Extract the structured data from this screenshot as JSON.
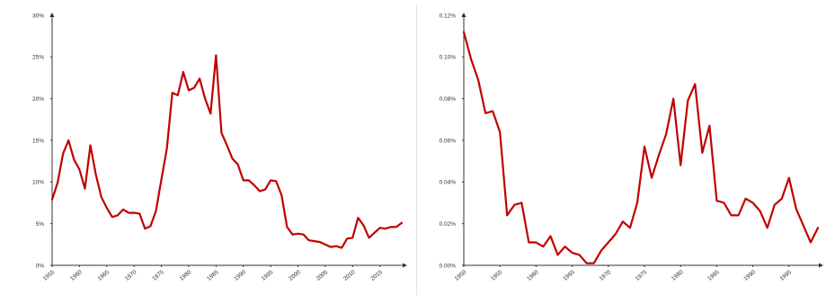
{
  "chart_data": [
    {
      "type": "line",
      "x": [
        1955,
        1956,
        1957,
        1958,
        1959,
        1960,
        1961,
        1962,
        1963,
        1964,
        1965,
        1966,
        1967,
        1968,
        1969,
        1970,
        1971,
        1972,
        1973,
        1974,
        1975,
        1976,
        1977,
        1978,
        1979,
        1980,
        1981,
        1982,
        1983,
        1984,
        1985,
        1986,
        1987,
        1988,
        1989,
        1990,
        1991,
        1992,
        1993,
        1994,
        1995,
        1996,
        1997,
        1998,
        1999,
        2000,
        2001,
        2002,
        2003,
        2004,
        2005,
        2006,
        2007,
        2008,
        2009,
        2010,
        2011,
        2012,
        2013,
        2014,
        2015,
        2016,
        2017,
        2018,
        2019
      ],
      "series": [
        {
          "values": [
            7.9,
            9.9,
            13.4,
            15.0,
            12.7,
            11.5,
            9.2,
            14.4,
            10.9,
            8.2,
            6.9,
            5.8,
            6.0,
            6.7,
            6.3,
            6.3,
            6.2,
            4.4,
            4.7,
            6.5,
            10.3,
            14.0,
            20.7,
            20.4,
            23.2,
            21.0,
            21.3,
            22.4,
            20.0,
            18.2,
            25.2,
            15.9,
            14.4,
            12.8,
            12.1,
            10.2,
            10.2,
            9.6,
            8.9,
            9.1,
            10.2,
            10.1,
            8.4,
            4.6,
            3.7,
            3.8,
            3.7,
            3.0,
            2.9,
            2.8,
            2.5,
            2.2,
            2.3,
            2.1,
            3.2,
            3.3,
            5.7,
            4.8,
            3.3,
            3.9,
            4.5,
            4.4,
            4.6,
            4.6,
            5.1
          ]
        }
      ],
      "ylim": [
        0,
        30
      ],
      "yticks": [
        0,
        5,
        10,
        15,
        20,
        25,
        30
      ],
      "ytick_labels": [
        "0%",
        "5%",
        "10%",
        "15%",
        "20%",
        "25%",
        "30%"
      ],
      "xticks": [
        1955,
        1960,
        1965,
        1970,
        1975,
        1980,
        1985,
        1990,
        1995,
        2000,
        2005,
        2010,
        2015
      ],
      "xtick_labels": [
        "1955",
        "1960",
        "1965",
        "1970",
        "1975",
        "1980",
        "1985",
        "1990",
        "1995",
        "2000",
        "2005",
        "2010",
        "2015"
      ],
      "xlim": [
        1955,
        2019
      ],
      "color": "#c00000"
    },
    {
      "type": "line",
      "x": [
        1950,
        1951,
        1952,
        1953,
        1954,
        1955,
        1956,
        1957,
        1958,
        1959,
        1960,
        1961,
        1962,
        1963,
        1964,
        1965,
        1966,
        1967,
        1968,
        1969,
        1970,
        1971,
        1972,
        1973,
        1974,
        1975,
        1976,
        1977,
        1978,
        1979,
        1980,
        1981,
        1982,
        1983,
        1984,
        1985,
        1986,
        1987,
        1988,
        1989,
        1990,
        1991,
        1992,
        1993,
        1994,
        1995,
        1996,
        1997,
        1998,
        1999
      ],
      "series": [
        {
          "values": [
            0.112,
            0.099,
            0.089,
            0.073,
            0.074,
            0.064,
            0.024,
            0.029,
            0.03,
            0.011,
            0.011,
            0.009,
            0.014,
            0.005,
            0.009,
            0.006,
            0.005,
            0.001,
            0.001,
            0.007,
            0.011,
            0.015,
            0.021,
            0.018,
            0.03,
            0.057,
            0.042,
            0.053,
            0.063,
            0.08,
            0.048,
            0.079,
            0.087,
            0.054,
            0.067,
            0.031,
            0.03,
            0.024,
            0.024,
            0.032,
            0.03,
            0.026,
            0.018,
            0.029,
            0.032,
            0.042,
            0.027,
            0.019,
            0.011,
            0.018
          ]
        }
      ],
      "ylim": [
        0,
        0.12
      ],
      "yticks": [
        0,
        0.02,
        0.04,
        0.06,
        0.08,
        0.1,
        0.12
      ],
      "ytick_labels": [
        "0.00%",
        "0.02%",
        "0.04%",
        "0.06%",
        "0.08%",
        "0.10%",
        "0.12%"
      ],
      "xticks": [
        1950,
        1955,
        1960,
        1965,
        1970,
        1975,
        1980,
        1985,
        1990,
        1995
      ],
      "xtick_labels": [
        "1950",
        "1955",
        "1960",
        "1965",
        "1970",
        "1975",
        "1980",
        "1985",
        "1990",
        "1995"
      ],
      "xlim": [
        1950,
        1999
      ],
      "color": "#c00000"
    }
  ]
}
